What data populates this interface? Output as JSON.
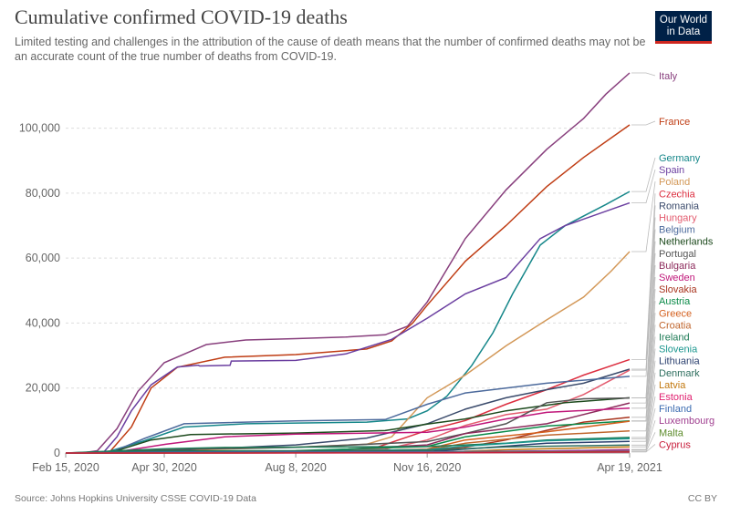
{
  "header": {
    "title": "Cumulative confirmed COVID-19 deaths",
    "subtitle": "Limited testing and challenges in the attribution of the cause of death means that the number of confirmed deaths may not be an accurate count of the true number of deaths from COVID-19.",
    "logo_line1": "Our World",
    "logo_line2": "in Data"
  },
  "footer": {
    "source": "Source: Johns Hopkins University CSSE COVID-19 Data",
    "license": "CC BY"
  },
  "colors": {
    "logo_bg": "#002147",
    "logo_accent": "#ce261e",
    "grid": "#dddddd"
  },
  "chart_data": {
    "type": "line",
    "x_axis": {
      "type": "date",
      "ticks": [
        "Feb 15, 2020",
        "Apr 30, 2020",
        "Aug 8, 2020",
        "Nov 16, 2020",
        "Apr 19, 2021"
      ],
      "range": [
        "2020-02-15",
        "2021-04-19"
      ]
    },
    "y_axis": {
      "ticks": [
        "0",
        "20,000",
        "40,000",
        "60,000",
        "80,000",
        "100,000"
      ],
      "ylim": [
        0,
        117000
      ]
    },
    "grid": "horizontal-dashed",
    "legend": "right-side-labels",
    "series": [
      {
        "name": "Italy",
        "color": "#883f7d",
        "points": [
          [
            "2020-02-15",
            0
          ],
          [
            "2020-02-27",
            0
          ],
          [
            "2020-03-10",
            700
          ],
          [
            "2020-03-25",
            7500
          ],
          [
            "2020-04-10",
            19000
          ],
          [
            "2020-04-30",
            27800
          ],
          [
            "2020-06-01",
            33400
          ],
          [
            "2020-07-01",
            34800
          ],
          [
            "2020-08-08",
            35200
          ],
          [
            "2020-09-15",
            35700
          ],
          [
            "2020-10-15",
            36400
          ],
          [
            "2020-11-01",
            39000
          ],
          [
            "2020-11-16",
            46500
          ],
          [
            "2020-12-15",
            66000
          ],
          [
            "2021-01-15",
            81000
          ],
          [
            "2021-02-15",
            93500
          ],
          [
            "2021-03-15",
            103000
          ],
          [
            "2021-04-01",
            110500
          ],
          [
            "2021-04-19",
            117000
          ]
        ]
      },
      {
        "name": "France",
        "color": "#bf3c13",
        "points": [
          [
            "2020-02-15",
            0
          ],
          [
            "2020-03-05",
            0
          ],
          [
            "2020-03-20",
            600
          ],
          [
            "2020-04-05",
            8000
          ],
          [
            "2020-04-20",
            20000
          ],
          [
            "2020-05-10",
            26400
          ],
          [
            "2020-06-15",
            29500
          ],
          [
            "2020-08-08",
            30300
          ],
          [
            "2020-10-01",
            32000
          ],
          [
            "2020-10-20",
            34500
          ],
          [
            "2020-11-05",
            40000
          ],
          [
            "2020-11-16",
            45500
          ],
          [
            "2020-12-15",
            59000
          ],
          [
            "2021-01-15",
            70000
          ],
          [
            "2021-02-15",
            82000
          ],
          [
            "2021-03-15",
            91000
          ],
          [
            "2021-04-19",
            101000
          ]
        ]
      },
      {
        "name": "Germany",
        "color": "#16878a",
        "points": [
          [
            "2020-02-15",
            0
          ],
          [
            "2020-03-15",
            20
          ],
          [
            "2020-04-15",
            3800
          ],
          [
            "2020-05-15",
            8000
          ],
          [
            "2020-07-01",
            9000
          ],
          [
            "2020-10-01",
            9500
          ],
          [
            "2020-11-01",
            10500
          ],
          [
            "2020-11-16",
            13000
          ],
          [
            "2020-12-01",
            17500
          ],
          [
            "2020-12-20",
            27000
          ],
          [
            "2021-01-05",
            37000
          ],
          [
            "2021-01-20",
            49000
          ],
          [
            "2021-02-10",
            64000
          ],
          [
            "2021-03-01",
            70000
          ],
          [
            "2021-04-01",
            76500
          ],
          [
            "2021-04-19",
            80500
          ]
        ]
      },
      {
        "name": "Spain",
        "color": "#6b3fa0",
        "points": [
          [
            "2020-02-15",
            0
          ],
          [
            "2020-03-05",
            0
          ],
          [
            "2020-03-15",
            300
          ],
          [
            "2020-03-25",
            5000
          ],
          [
            "2020-04-05",
            13000
          ],
          [
            "2020-04-20",
            21000
          ],
          [
            "2020-05-10",
            26500
          ],
          [
            "2020-05-25",
            27000
          ],
          [
            "2020-05-26",
            27000
          ],
          [
            "2020-05-27",
            26800
          ],
          [
            "2020-06-19",
            27000
          ],
          [
            "2020-06-20",
            28300
          ],
          [
            "2020-08-08",
            28500
          ],
          [
            "2020-09-15",
            30500
          ],
          [
            "2020-10-20",
            35000
          ],
          [
            "2020-11-16",
            41500
          ],
          [
            "2020-12-15",
            49000
          ],
          [
            "2021-01-15",
            54000
          ],
          [
            "2021-02-10",
            66000
          ],
          [
            "2021-03-01",
            70000
          ],
          [
            "2021-04-19",
            77000
          ]
        ]
      },
      {
        "name": "Poland",
        "color": "#d39858",
        "points": [
          [
            "2020-02-15",
            0
          ],
          [
            "2020-03-15",
            0
          ],
          [
            "2020-04-30",
            700
          ],
          [
            "2020-08-08",
            1800
          ],
          [
            "2020-10-01",
            2700
          ],
          [
            "2020-10-20",
            5000
          ],
          [
            "2020-11-16",
            17000
          ],
          [
            "2020-12-15",
            24000
          ],
          [
            "2021-01-15",
            33000
          ],
          [
            "2021-02-15",
            41000
          ],
          [
            "2021-03-15",
            48000
          ],
          [
            "2021-04-05",
            56000
          ],
          [
            "2021-04-19",
            62000
          ]
        ]
      },
      {
        "name": "Czechia",
        "color": "#dc2f40",
        "points": [
          [
            "2020-02-15",
            0
          ],
          [
            "2020-10-01",
            700
          ],
          [
            "2020-11-16",
            7000
          ],
          [
            "2020-12-15",
            10000
          ],
          [
            "2021-01-15",
            15000
          ],
          [
            "2021-02-15",
            19500
          ],
          [
            "2021-03-15",
            24000
          ],
          [
            "2021-04-19",
            28800
          ]
        ]
      },
      {
        "name": "Romania",
        "color": "#3a4a6b",
        "points": [
          [
            "2020-02-15",
            0
          ],
          [
            "2020-04-30",
            700
          ],
          [
            "2020-08-08",
            2500
          ],
          [
            "2020-10-01",
            4600
          ],
          [
            "2020-11-16",
            9000
          ],
          [
            "2020-12-15",
            13500
          ],
          [
            "2021-01-15",
            17000
          ],
          [
            "2021-02-15",
            19500
          ],
          [
            "2021-03-15",
            21500
          ],
          [
            "2021-04-19",
            25800
          ]
        ]
      },
      {
        "name": "Hungary",
        "color": "#e35b6e",
        "points": [
          [
            "2020-02-15",
            0
          ],
          [
            "2020-08-08",
            600
          ],
          [
            "2020-10-15",
            1200
          ],
          [
            "2020-11-16",
            4000
          ],
          [
            "2020-12-15",
            8500
          ],
          [
            "2021-01-15",
            11800
          ],
          [
            "2021-02-15",
            13500
          ],
          [
            "2021-03-15",
            18000
          ],
          [
            "2021-04-19",
            25500
          ]
        ]
      },
      {
        "name": "Belgium",
        "color": "#4c6a9c",
        "points": [
          [
            "2020-02-15",
            0
          ],
          [
            "2020-03-20",
            100
          ],
          [
            "2020-04-15",
            4500
          ],
          [
            "2020-05-15",
            9000
          ],
          [
            "2020-08-08",
            9900
          ],
          [
            "2020-10-15",
            10300
          ],
          [
            "2020-11-16",
            15000
          ],
          [
            "2020-12-15",
            18500
          ],
          [
            "2021-02-15",
            21500
          ],
          [
            "2021-04-19",
            23600
          ]
        ]
      },
      {
        "name": "Netherlands",
        "color": "#1d4a1d",
        "points": [
          [
            "2020-02-15",
            0
          ],
          [
            "2020-03-20",
            100
          ],
          [
            "2020-04-20",
            4000
          ],
          [
            "2020-05-20",
            5700
          ],
          [
            "2020-08-08",
            6150
          ],
          [
            "2020-10-15",
            6900
          ],
          [
            "2020-11-16",
            8900
          ],
          [
            "2020-12-15",
            10500
          ],
          [
            "2021-01-15",
            13000
          ],
          [
            "2021-03-01",
            15500
          ],
          [
            "2021-04-19",
            17000
          ]
        ]
      },
      {
        "name": "Portugal",
        "color": "#555555",
        "points": [
          [
            "2020-02-15",
            0
          ],
          [
            "2020-04-30",
            1000
          ],
          [
            "2020-08-08",
            1750
          ],
          [
            "2020-11-16",
            3500
          ],
          [
            "2020-12-15",
            6000
          ],
          [
            "2021-01-15",
            9000
          ],
          [
            "2021-02-15",
            15500
          ],
          [
            "2021-03-15",
            16700
          ],
          [
            "2021-04-19",
            16950
          ]
        ]
      },
      {
        "name": "Bulgaria",
        "color": "#8c2a5b",
        "points": [
          [
            "2020-02-15",
            0
          ],
          [
            "2020-08-08",
            400
          ],
          [
            "2020-11-16",
            2500
          ],
          [
            "2020-12-15",
            6000
          ],
          [
            "2021-02-15",
            9000
          ],
          [
            "2021-04-19",
            15400
          ]
        ]
      },
      {
        "name": "Sweden",
        "color": "#c0177a",
        "points": [
          [
            "2020-02-15",
            0
          ],
          [
            "2020-03-20",
            50
          ],
          [
            "2020-05-01",
            2700
          ],
          [
            "2020-06-15",
            5000
          ],
          [
            "2020-08-08",
            5800
          ],
          [
            "2020-11-16",
            6400
          ],
          [
            "2020-12-15",
            8000
          ],
          [
            "2021-01-15",
            10500
          ],
          [
            "2021-02-15",
            12500
          ],
          [
            "2021-04-19",
            13800
          ]
        ]
      },
      {
        "name": "Slovakia",
        "color": "#a8341e",
        "points": [
          [
            "2020-02-15",
            0
          ],
          [
            "2020-11-16",
            700
          ],
          [
            "2020-12-15",
            1800
          ],
          [
            "2021-01-15",
            4000
          ],
          [
            "2021-02-15",
            7000
          ],
          [
            "2021-03-15",
            9500
          ],
          [
            "2021-04-19",
            11000
          ]
        ]
      },
      {
        "name": "Austria",
        "color": "#0a8a48",
        "points": [
          [
            "2020-02-15",
            0
          ],
          [
            "2020-04-30",
            600
          ],
          [
            "2020-08-08",
            720
          ],
          [
            "2020-11-16",
            2000
          ],
          [
            "2020-12-15",
            5000
          ],
          [
            "2021-02-15",
            8300
          ],
          [
            "2021-04-19",
            9900
          ]
        ]
      },
      {
        "name": "Greece",
        "color": "#d4601e",
        "points": [
          [
            "2020-02-15",
            0
          ],
          [
            "2020-08-08",
            210
          ],
          [
            "2020-11-16",
            1200
          ],
          [
            "2020-12-15",
            4000
          ],
          [
            "2021-02-15",
            6500
          ],
          [
            "2021-04-19",
            9800
          ]
        ]
      },
      {
        "name": "Croatia",
        "color": "#c0662e",
        "points": [
          [
            "2020-02-15",
            0
          ],
          [
            "2020-11-16",
            1000
          ],
          [
            "2020-12-15",
            3000
          ],
          [
            "2021-02-15",
            5500
          ],
          [
            "2021-04-19",
            6800
          ]
        ]
      },
      {
        "name": "Ireland",
        "color": "#1d7a55",
        "points": [
          [
            "2020-02-15",
            0
          ],
          [
            "2020-04-30",
            1300
          ],
          [
            "2020-06-15",
            1700
          ],
          [
            "2020-11-16",
            2000
          ],
          [
            "2021-01-15",
            3000
          ],
          [
            "2021-02-15",
            4000
          ],
          [
            "2021-04-19",
            4800
          ]
        ]
      },
      {
        "name": "Slovenia",
        "color": "#1a968e",
        "points": [
          [
            "2020-02-15",
            0
          ],
          [
            "2020-11-16",
            1000
          ],
          [
            "2020-12-15",
            2100
          ],
          [
            "2021-02-15",
            3800
          ],
          [
            "2021-04-19",
            4400
          ]
        ]
      },
      {
        "name": "Lithuania",
        "color": "#2a3f6e",
        "points": [
          [
            "2020-02-15",
            0
          ],
          [
            "2020-11-16",
            300
          ],
          [
            "2020-12-15",
            1200
          ],
          [
            "2021-02-15",
            3000
          ],
          [
            "2021-04-19",
            3600
          ]
        ]
      },
      {
        "name": "Denmark",
        "color": "#2d6e5e",
        "points": [
          [
            "2020-02-15",
            0
          ],
          [
            "2020-04-30",
            450
          ],
          [
            "2020-08-08",
            620
          ],
          [
            "2020-11-16",
            750
          ],
          [
            "2021-01-15",
            1900
          ],
          [
            "2021-04-19",
            2450
          ]
        ]
      },
      {
        "name": "Latvia",
        "color": "#c2780e",
        "points": [
          [
            "2020-02-15",
            0
          ],
          [
            "2020-11-16",
            100
          ],
          [
            "2021-01-15",
            1000
          ],
          [
            "2021-04-19",
            1900
          ]
        ]
      },
      {
        "name": "Estonia",
        "color": "#e01e6e",
        "points": [
          [
            "2020-02-15",
            0
          ],
          [
            "2020-11-16",
            80
          ],
          [
            "2021-02-15",
            600
          ],
          [
            "2021-04-19",
            1100
          ]
        ]
      },
      {
        "name": "Finland",
        "color": "#3a6ab0",
        "points": [
          [
            "2020-02-15",
            0
          ],
          [
            "2020-04-30",
            250
          ],
          [
            "2020-11-16",
            370
          ],
          [
            "2021-04-19",
            880
          ]
        ]
      },
      {
        "name": "Luxembourg",
        "color": "#a04090",
        "points": [
          [
            "2020-02-15",
            0
          ],
          [
            "2020-11-16",
            200
          ],
          [
            "2021-04-19",
            800
          ]
        ]
      },
      {
        "name": "Malta",
        "color": "#5a8a28",
        "points": [
          [
            "2020-02-15",
            0
          ],
          [
            "2020-11-16",
            100
          ],
          [
            "2021-04-19",
            410
          ]
        ]
      },
      {
        "name": "Cyprus",
        "color": "#c81e3c",
        "points": [
          [
            "2020-02-15",
            0
          ],
          [
            "2020-11-16",
            30
          ],
          [
            "2021-04-19",
            300
          ]
        ]
      }
    ],
    "legend_labels": [
      {
        "name": "Italy",
        "row": 0,
        "group": "top"
      },
      {
        "name": "France",
        "row": 0,
        "group": "mid"
      }
    ]
  }
}
